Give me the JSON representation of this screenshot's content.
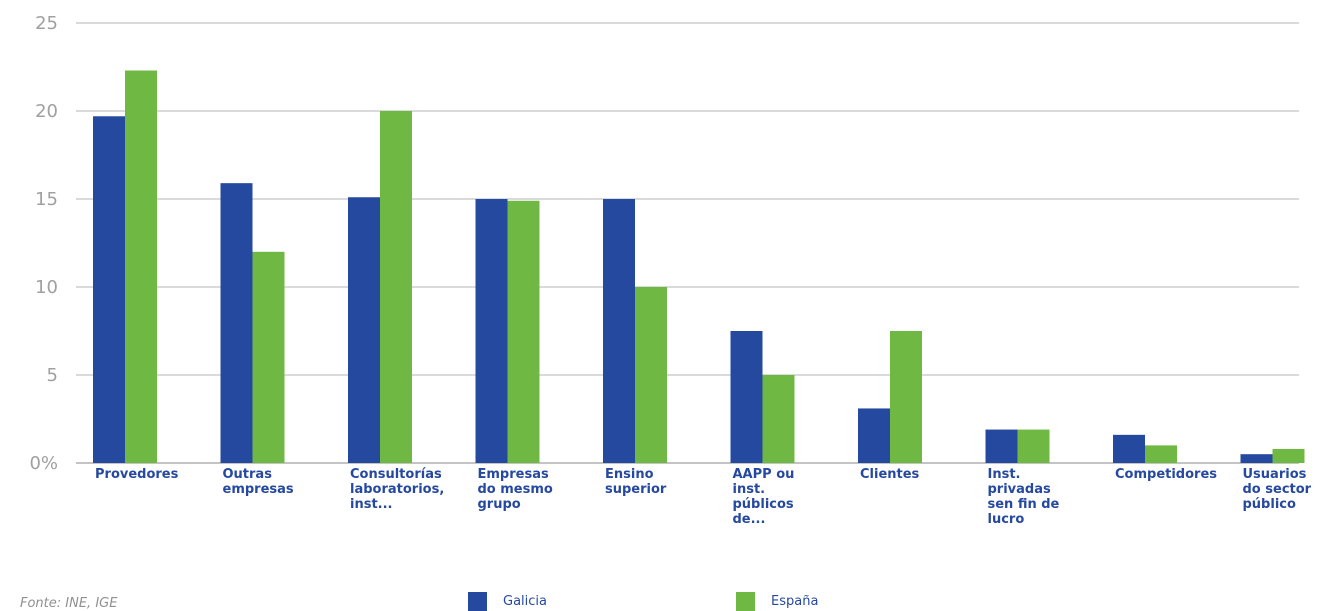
{
  "chart_data": {
    "type": "bar",
    "categories": [
      "Provedores",
      "Outras\nempresas",
      "Consultorías\nlaboratorios,\ninst...",
      "Empresas\ndo mesmo\ngrupo",
      "Ensino\nsuperior",
      "AAPP ou\ninst.\npúblicos\nde...",
      "Clientes",
      "Inst.\nprivadas\nsen fin de\nlucro",
      "Competidores",
      "Usuarios\ndo sector\npúblico"
    ],
    "series": [
      {
        "name": "Galicia",
        "color": "#2649a0",
        "values": [
          19.7,
          15.9,
          15.1,
          15.0,
          15.0,
          7.5,
          3.1,
          1.9,
          1.6,
          0.5
        ]
      },
      {
        "name": "España",
        "color": "#70b844",
        "values": [
          22.3,
          12.0,
          20.0,
          14.9,
          10.0,
          5.0,
          7.5,
          1.9,
          1.0,
          0.8
        ]
      }
    ],
    "yticks": [
      "0%",
      "5",
      "10",
      "15",
      "20",
      "25"
    ],
    "ylim": [
      0,
      25
    ],
    "grid": true,
    "legend_position": "bottom-center"
  },
  "source_note": "Fonte: INE, IGE"
}
